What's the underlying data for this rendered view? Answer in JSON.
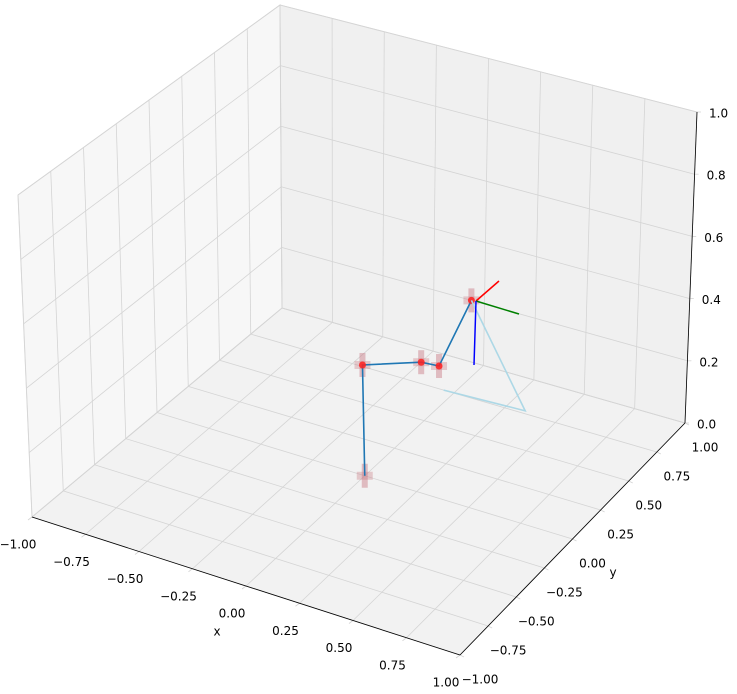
{
  "chart_data": {
    "type": "line3d",
    "xlabel": "x",
    "ylabel": "y",
    "xlim": [
      -1,
      1
    ],
    "ylim": [
      -1,
      1
    ],
    "zlim": [
      0,
      1
    ],
    "xticks": [
      {
        "value": -1,
        "label": "−1.00"
      },
      {
        "value": -0.75,
        "label": "−0.75"
      },
      {
        "value": -0.5,
        "label": "−0.50"
      },
      {
        "value": -0.25,
        "label": "−0.25"
      },
      {
        "value": 0,
        "label": "0.00"
      },
      {
        "value": 0.25,
        "label": "0.25"
      },
      {
        "value": 0.5,
        "label": "0.50"
      },
      {
        "value": 0.75,
        "label": "0.75"
      },
      {
        "value": 1,
        "label": "1.00"
      }
    ],
    "yticks": [
      {
        "value": -1,
        "label": "−1.00"
      },
      {
        "value": -0.75,
        "label": "−0.75"
      },
      {
        "value": -0.5,
        "label": "−0.50"
      },
      {
        "value": -0.25,
        "label": "−0.25"
      },
      {
        "value": 0,
        "label": "0.00"
      },
      {
        "value": 0.25,
        "label": "0.25"
      },
      {
        "value": 0.5,
        "label": "0.50"
      },
      {
        "value": 0.75,
        "label": "0.75"
      },
      {
        "value": 1,
        "label": "1.00"
      }
    ],
    "zticks": [
      {
        "value": 0,
        "label": "0.0"
      },
      {
        "value": 0.2,
        "label": "0.2"
      },
      {
        "value": 0.4,
        "label": "0.4"
      },
      {
        "value": 0.6,
        "label": "0.6"
      },
      {
        "value": 0.8,
        "label": "0.8"
      },
      {
        "value": 1,
        "label": "1.0"
      }
    ],
    "grid": true,
    "series": [
      {
        "color": "#1f77b4",
        "markers": true,
        "x": [
          0,
          0,
          0.2,
          0.28,
          0.35
        ],
        "y": [
          0,
          0,
          0.14,
          0.15,
          0.3
        ],
        "z": [
          0,
          0.35,
          0.35,
          0.35,
          0.52
        ]
      },
      {
        "color": "#add8e6",
        "markers": false,
        "x": [
          0.35,
          0.34,
          -0.05
        ],
        "y": [
          0.3,
          0.77,
          0.75
        ],
        "z": [
          0.52,
          0,
          0
        ]
      }
    ]
  }
}
